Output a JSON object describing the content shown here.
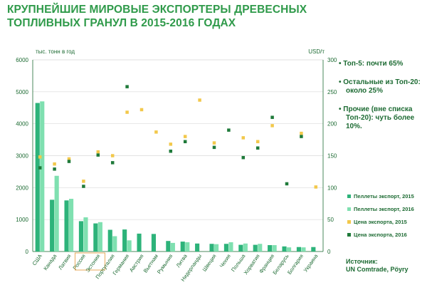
{
  "title": {
    "line1": "КРУПНЕЙШИЕ МИРОВЫЕ ЭКСПОРТЕРЫ ДРЕВЕСНЫХ",
    "line2": "ТОПЛИВНЫХ ГРАНУЛ В 2015-2016 ГОДАХ"
  },
  "colors": {
    "pellets2015": "#2db37a",
    "pellets2016": "#7fe0b0",
    "price2015": "#f2c84b",
    "price2016": "#1f7a3a",
    "text": "#1d6b33",
    "grid": "#d9d9d9",
    "highlight": "#e6a24a"
  },
  "bullets": [
    "• Топ-5: почти 65%",
    "• Остальные из Топ-20: около 25%",
    "• Прочие (вне списка Топ-20): чуть более 10%."
  ],
  "legend": [
    {
      "key": "pellets2015",
      "label": "Пеллеты экспорт, 2015"
    },
    {
      "key": "pellets2016",
      "label": "Пеллеты экспорт, 2016"
    },
    {
      "key": "price2015",
      "label": "Цена экспорта, 2015"
    },
    {
      "key": "price2016",
      "label": "Цена экспорта, 2016"
    }
  ],
  "source": {
    "line1": "Источник:",
    "line2": "UN Comtrade, Pöyry"
  },
  "chart_data": {
    "type": "bar",
    "left_axis_label": "тыс. тонн в год",
    "right_axis_label": "USD/т",
    "ylim_left": [
      0,
      6000
    ],
    "ylim_right": [
      0,
      300
    ],
    "left_ticks": [
      "0",
      "1000",
      "2000",
      "3000",
      "4000",
      "5000",
      "6000"
    ],
    "right_ticks": [
      "0",
      "50",
      "100",
      "150",
      "200",
      "250",
      "300"
    ],
    "highlight_category": "Россия",
    "categories": [
      "США",
      "Канада",
      "Латвия",
      "Россия",
      "Эстония",
      "Португалия",
      "Германия",
      "Австрия",
      "Вьетнам",
      "Румыния",
      "Литва",
      "Нидерланды",
      "Швеция",
      "Чехия",
      "Польша",
      "Хорватия",
      "Франция",
      "Беларусь",
      "Болгария",
      "Украина"
    ],
    "series": [
      {
        "name": "Пеллеты экспорт, 2015",
        "key": "pellets2015",
        "kind": "bar",
        "axis": "left",
        "values": [
          4650,
          1620,
          1600,
          950,
          880,
          680,
          690,
          560,
          550,
          330,
          310,
          250,
          240,
          240,
          210,
          210,
          200,
          160,
          140,
          140
        ]
      },
      {
        "name": "Пеллеты экспорт, 2016",
        "key": "pellets2016",
        "kind": "bar",
        "axis": "left",
        "values": [
          4700,
          2370,
          1650,
          1070,
          920,
          480,
          350,
          null,
          null,
          270,
          290,
          null,
          230,
          290,
          250,
          240,
          200,
          130,
          130,
          null
        ]
      },
      {
        "name": "Цена экспорта, 2015",
        "key": "price2015",
        "kind": "point",
        "axis": "right",
        "values": [
          148,
          137,
          145,
          110,
          156,
          150,
          218,
          222,
          187,
          168,
          180,
          237,
          170,
          null,
          178,
          172,
          197,
          null,
          185,
          101
        ]
      },
      {
        "name": "Цена экспорта, 2016",
        "key": "price2016",
        "kind": "point",
        "axis": "right",
        "values": [
          131,
          129,
          141,
          102,
          151,
          139,
          258,
          null,
          null,
          157,
          172,
          null,
          163,
          190,
          147,
          162,
          210,
          106,
          180,
          null
        ]
      }
    ]
  }
}
